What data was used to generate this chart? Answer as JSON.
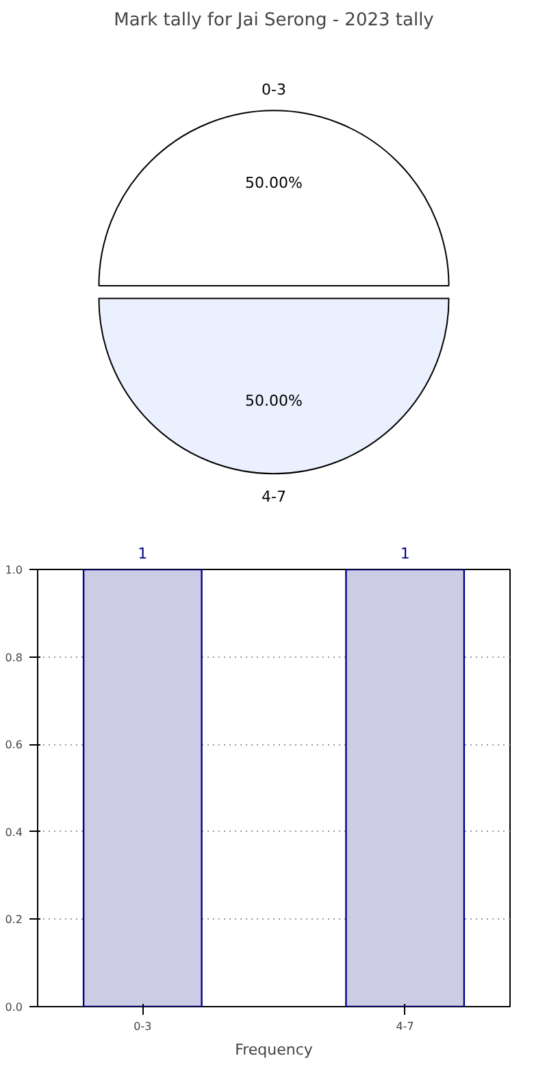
{
  "chart_data": [
    {
      "type": "pie",
      "title": "Mark tally for Jai Serong - 2023 tally",
      "categories": [
        "0-3",
        "4-7"
      ],
      "values": [
        50,
        50
      ],
      "colors": [
        "#ffffff",
        "#eaf0fd"
      ],
      "value_labels": [
        "50.00%",
        "50.00%"
      ]
    },
    {
      "type": "bar",
      "categories": [
        "0-3",
        "4-7"
      ],
      "values": [
        1,
        1
      ],
      "color": "#cccce4",
      "xlabel": "Frequency",
      "ylim": [
        0,
        1
      ],
      "yticks": [
        {
          "value": 0,
          "label": "0.0"
        },
        {
          "value": 0.2,
          "label": "0.2"
        },
        {
          "value": 0.4,
          "label": "0.4"
        },
        {
          "value": 0.6,
          "label": "0.6"
        },
        {
          "value": 0.8,
          "label": "0.8"
        },
        {
          "value": 1,
          "label": "1.0"
        }
      ],
      "grid": true,
      "data_labels": true
    }
  ]
}
